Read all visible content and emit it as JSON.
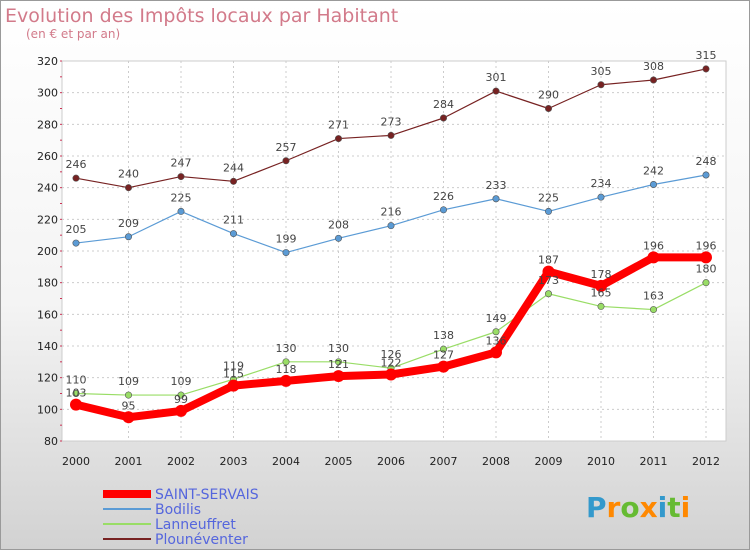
{
  "chart_data": {
    "type": "line",
    "title": "Evolution des Impôts locaux par Habitant",
    "subtitle": "(en € et par an)",
    "x": [
      "2000",
      "2001",
      "2002",
      "2003",
      "2004",
      "2005",
      "2006",
      "2007",
      "2008",
      "2009",
      "2010",
      "2011",
      "2012"
    ],
    "ylim": [
      80,
      320
    ],
    "yticks": [
      80,
      100,
      120,
      140,
      160,
      180,
      200,
      220,
      240,
      260,
      280,
      300,
      320
    ],
    "grid": true,
    "series": [
      {
        "name": "SAINT-SERVAIS",
        "color": "#ff0000",
        "values": [
          103,
          95,
          99,
          115,
          118,
          121,
          122,
          127,
          136,
          187,
          178,
          196,
          196
        ],
        "labels": [
          "103",
          "95",
          "99",
          "115",
          "118",
          "121",
          "122",
          "127",
          "136",
          "187",
          "178",
          "196",
          "196"
        ]
      },
      {
        "name": "Bodilis",
        "color": "#5b9bd5",
        "values": [
          205,
          209,
          225,
          211,
          199,
          208,
          216,
          226,
          233,
          225,
          234,
          242,
          248
        ],
        "labels": [
          "205",
          "209",
          "225",
          "211",
          "199",
          "208",
          "216",
          "226",
          "233",
          "225",
          "234",
          "242",
          "248"
        ]
      },
      {
        "name": "Lanneuffret",
        "color": "#99dd66",
        "values": [
          110,
          109,
          109,
          119,
          130,
          130,
          126,
          138,
          149,
          173,
          165,
          163,
          180
        ],
        "labels": [
          "110",
          "109",
          "109",
          "119",
          "130",
          "130",
          "126",
          "138",
          "149",
          "173",
          "165",
          "163",
          "180"
        ]
      },
      {
        "name": "Plounéventer",
        "color": "#772222",
        "values": [
          246,
          240,
          247,
          244,
          257,
          271,
          273,
          284,
          301,
          290,
          305,
          308,
          315
        ],
        "labels": [
          "246",
          "240",
          "247",
          "244",
          "257",
          "271",
          "273",
          "284",
          "301",
          "290",
          "305",
          "308",
          "315"
        ]
      }
    ],
    "legend_position": "bottom-left"
  },
  "brand": {
    "text": "Proxiti",
    "letters": [
      "P",
      "r",
      "o",
      "x",
      "i",
      "t",
      "i"
    ],
    "colors": [
      "#3399cc",
      "#ff8800",
      "#66bb33",
      "#ff8800",
      "#3399cc",
      "#66bb33",
      "#ff8800"
    ]
  }
}
